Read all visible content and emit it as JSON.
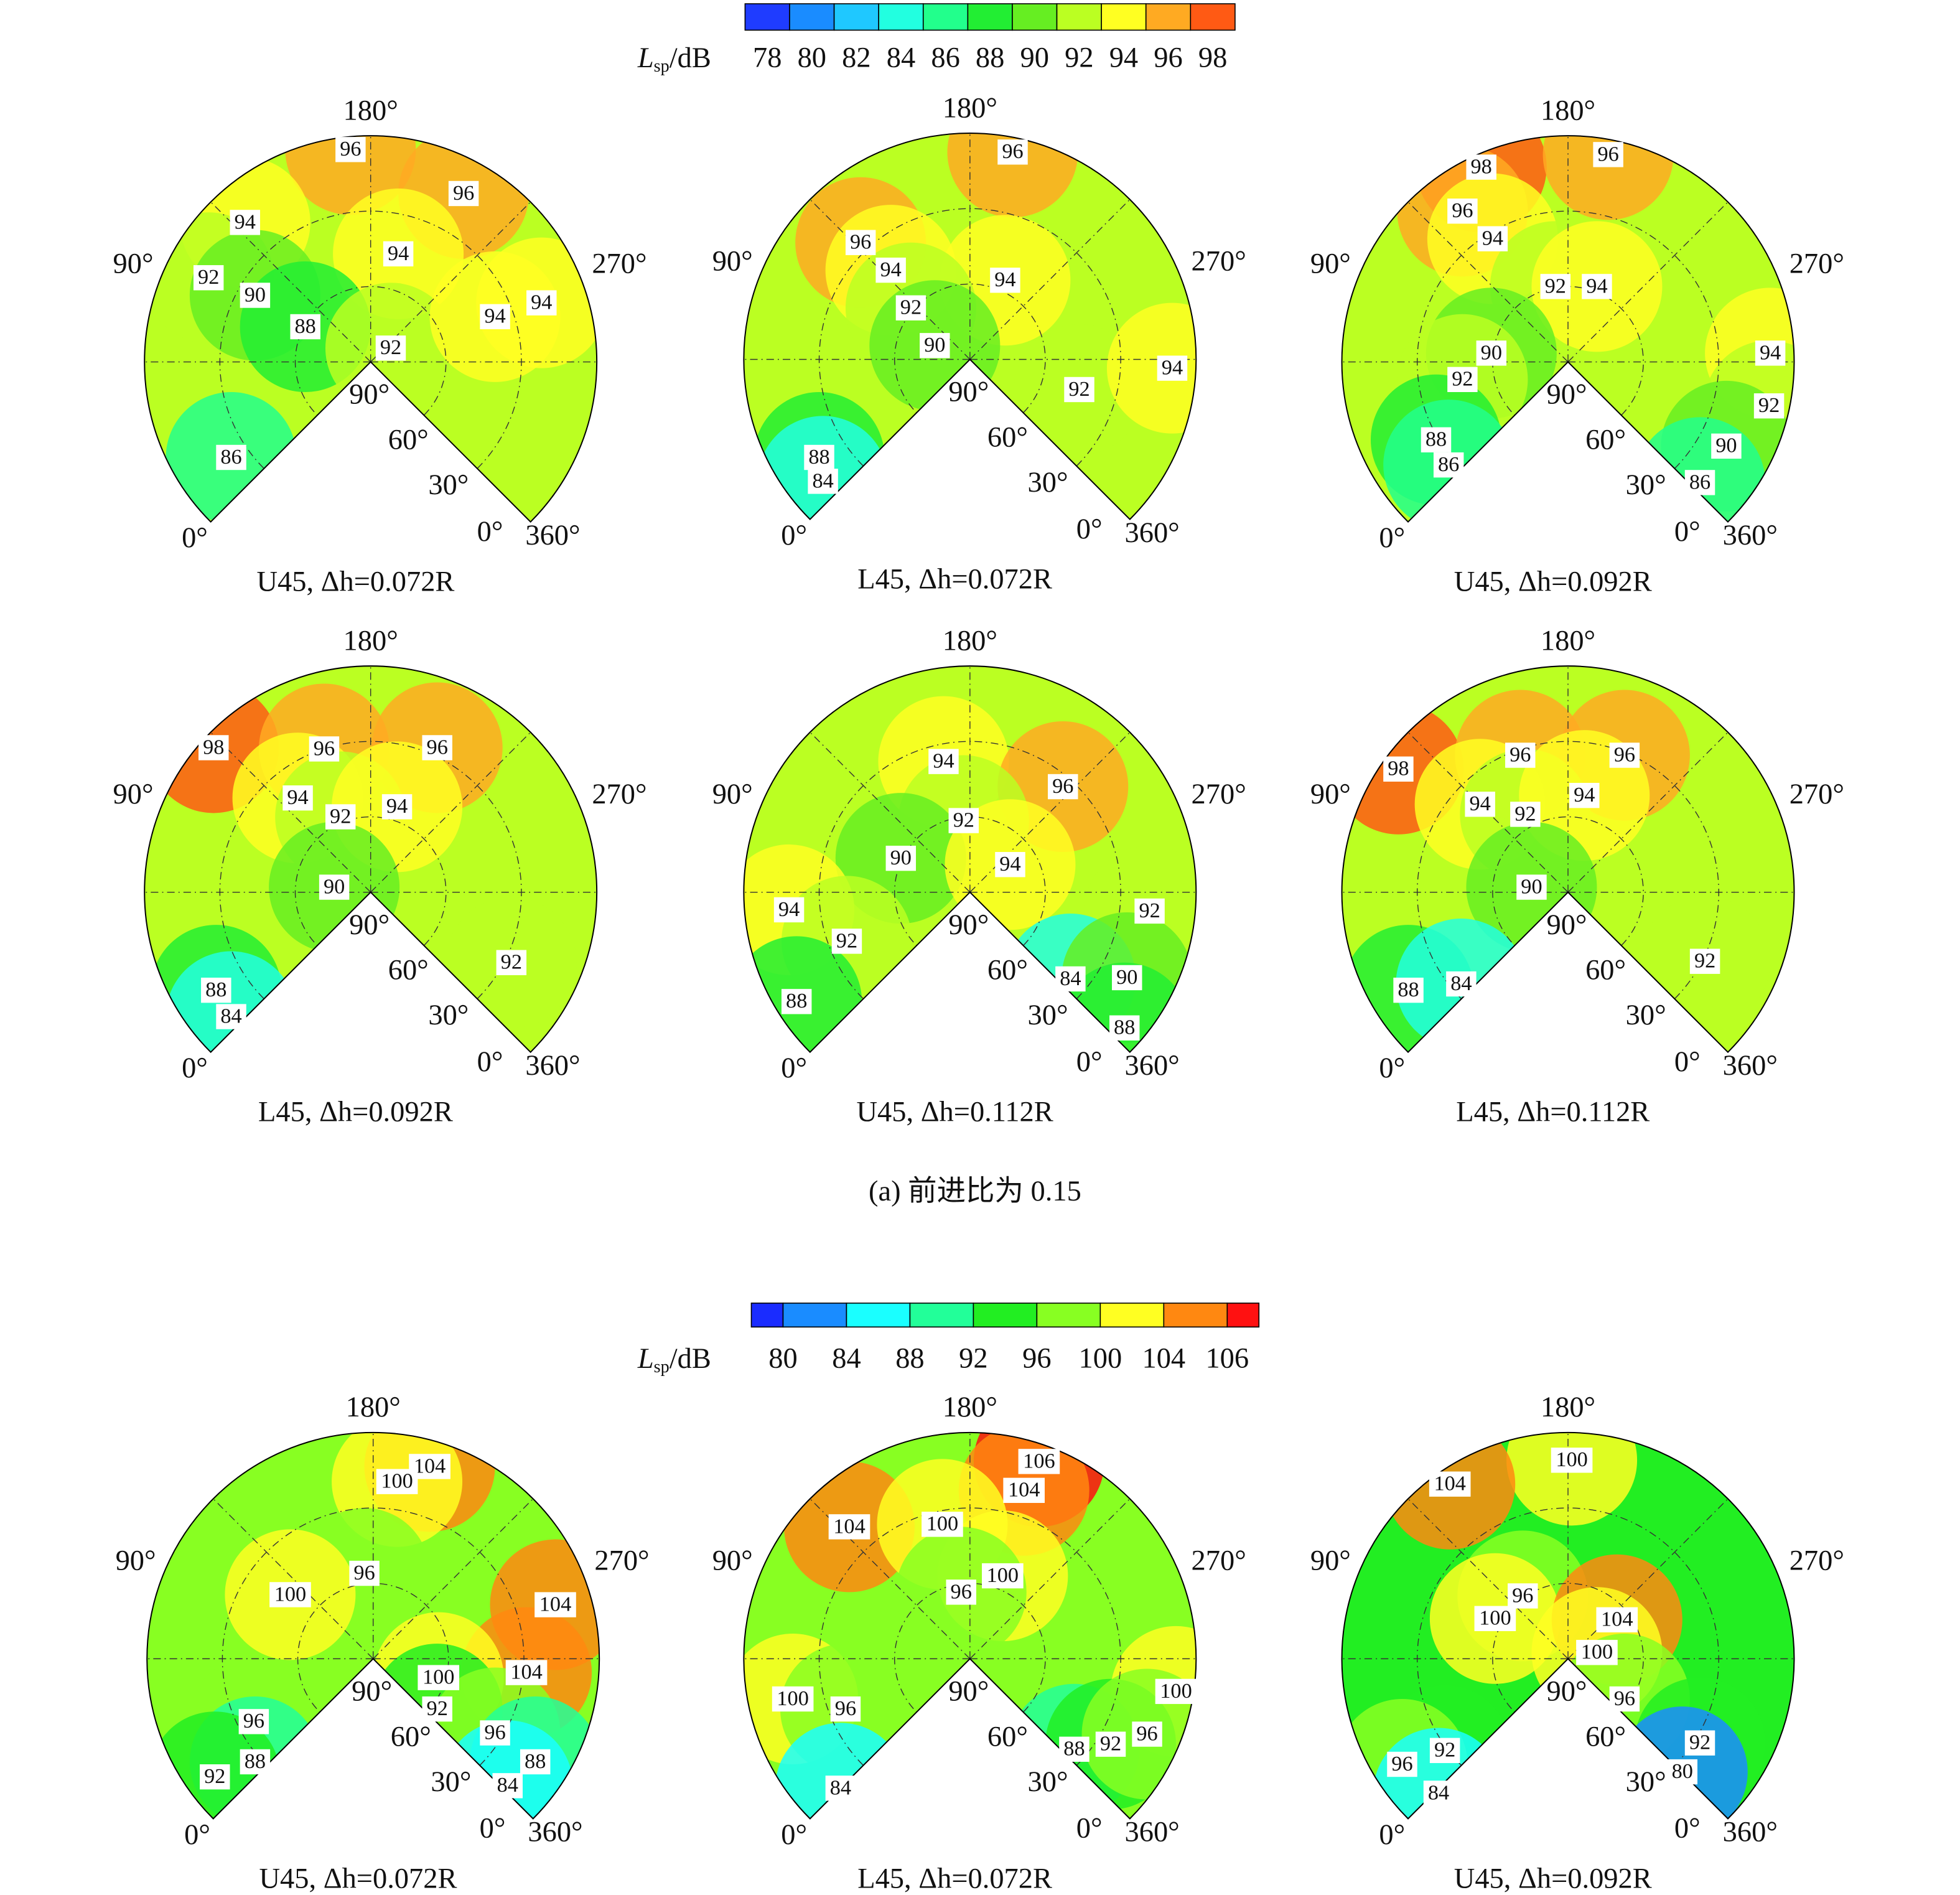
{
  "sections": [
    {
      "colorbar": {
        "label_main": "L",
        "label_sub": "sp",
        "label_unit": "/dB",
        "ticks": [
          78,
          80,
          82,
          84,
          86,
          88,
          90,
          92,
          94,
          96,
          98
        ],
        "colors": [
          "#1f3cff",
          "#1a8cff",
          "#1fc8ff",
          "#22ffe0",
          "#22ff8c",
          "#22ee33",
          "#66ee22",
          "#bbff22",
          "#ffff22",
          "#ffaa22",
          "#ff5a14"
        ]
      },
      "panels": [
        {
          "caption": "U45, Δh=0.072R",
          "angle_labels": [
            "180°",
            "90°",
            "270°",
            "0°",
            "90°",
            "60°",
            "30°",
            "0°",
            "360°"
          ],
          "contour_labels": [
            96,
            96,
            94,
            94,
            92,
            90,
            88,
            92,
            94,
            94,
            86
          ]
        },
        {
          "caption": "L45, Δh=0.072R",
          "angle_labels": [
            "180°",
            "90°",
            "270°",
            "0°",
            "90°",
            "60°",
            "30°",
            "0°",
            "360°"
          ],
          "contour_labels": [
            96,
            96,
            94,
            94,
            92,
            90,
            92,
            94,
            88,
            84
          ]
        },
        {
          "caption": "U45, Δh=0.092R",
          "angle_labels": [
            "180°",
            "90°",
            "270°",
            "0°",
            "90°",
            "60°",
            "30°",
            "0°",
            "360°"
          ],
          "contour_labels": [
            98,
            96,
            96,
            94,
            92,
            94,
            90,
            92,
            94,
            92,
            90,
            88,
            86,
            86
          ]
        },
        {
          "caption": "L45, Δh=0.092R",
          "angle_labels": [
            "180°",
            "90°",
            "270°",
            "0°",
            "90°",
            "60°",
            "30°",
            "0°",
            "360°"
          ],
          "contour_labels": [
            98,
            96,
            96,
            94,
            92,
            94,
            90,
            92,
            88,
            84
          ]
        },
        {
          "caption": "U45, Δh=0.112R",
          "angle_labels": [
            "180°",
            "90°",
            "270°",
            "0°",
            "90°",
            "60°",
            "30°",
            "0°",
            "360°"
          ],
          "contour_labels": [
            94,
            96,
            92,
            90,
            94,
            94,
            92,
            92,
            88,
            84,
            90,
            88
          ]
        },
        {
          "caption": "L45, Δh=0.112R",
          "angle_labels": [
            "180°",
            "90°",
            "270°",
            "0°",
            "90°",
            "60°",
            "30°",
            "0°",
            "360°"
          ],
          "contour_labels": [
            98,
            96,
            96,
            94,
            92,
            94,
            90,
            92,
            88,
            84
          ]
        }
      ],
      "caption": "(a) 前进比为 0.15"
    },
    {
      "colorbar": {
        "label_main": "L",
        "label_sub": "sp",
        "label_unit": "/dB",
        "ticks": [
          80,
          84,
          88,
          92,
          96,
          100,
          104,
          106
        ],
        "colors": [
          "#1a2cff",
          "#1a8cff",
          "#1affff",
          "#22ff99",
          "#22ee22",
          "#88ff22",
          "#ffff22",
          "#ff8811",
          "#ff1111"
        ]
      },
      "panels": [
        {
          "caption": "U45, Δh=0.072R",
          "angle_labels": [
            "180°",
            "90°",
            "270°",
            "0°",
            "90°",
            "60°",
            "30°",
            "0°",
            "360°"
          ],
          "contour_labels": [
            104,
            100,
            96,
            100,
            104,
            104,
            100,
            92,
            96,
            96,
            88,
            88,
            92,
            84
          ]
        },
        {
          "caption": "L45, Δh=0.072R",
          "angle_labels": [
            "180°",
            "90°",
            "270°",
            "0°",
            "90°",
            "60°",
            "30°",
            "0°",
            "360°"
          ],
          "contour_labels": [
            106,
            104,
            104,
            100,
            100,
            96,
            100,
            96,
            100,
            88,
            92,
            96,
            84
          ]
        },
        {
          "caption": "U45, Δh=0.092R",
          "angle_labels": [
            "180°",
            "90°",
            "270°",
            "0°",
            "90°",
            "60°",
            "30°",
            "0°",
            "360°"
          ],
          "contour_labels": [
            100,
            104,
            96,
            100,
            104,
            100,
            96,
            92,
            92,
            96,
            80,
            84
          ]
        }
      ]
    }
  ]
}
